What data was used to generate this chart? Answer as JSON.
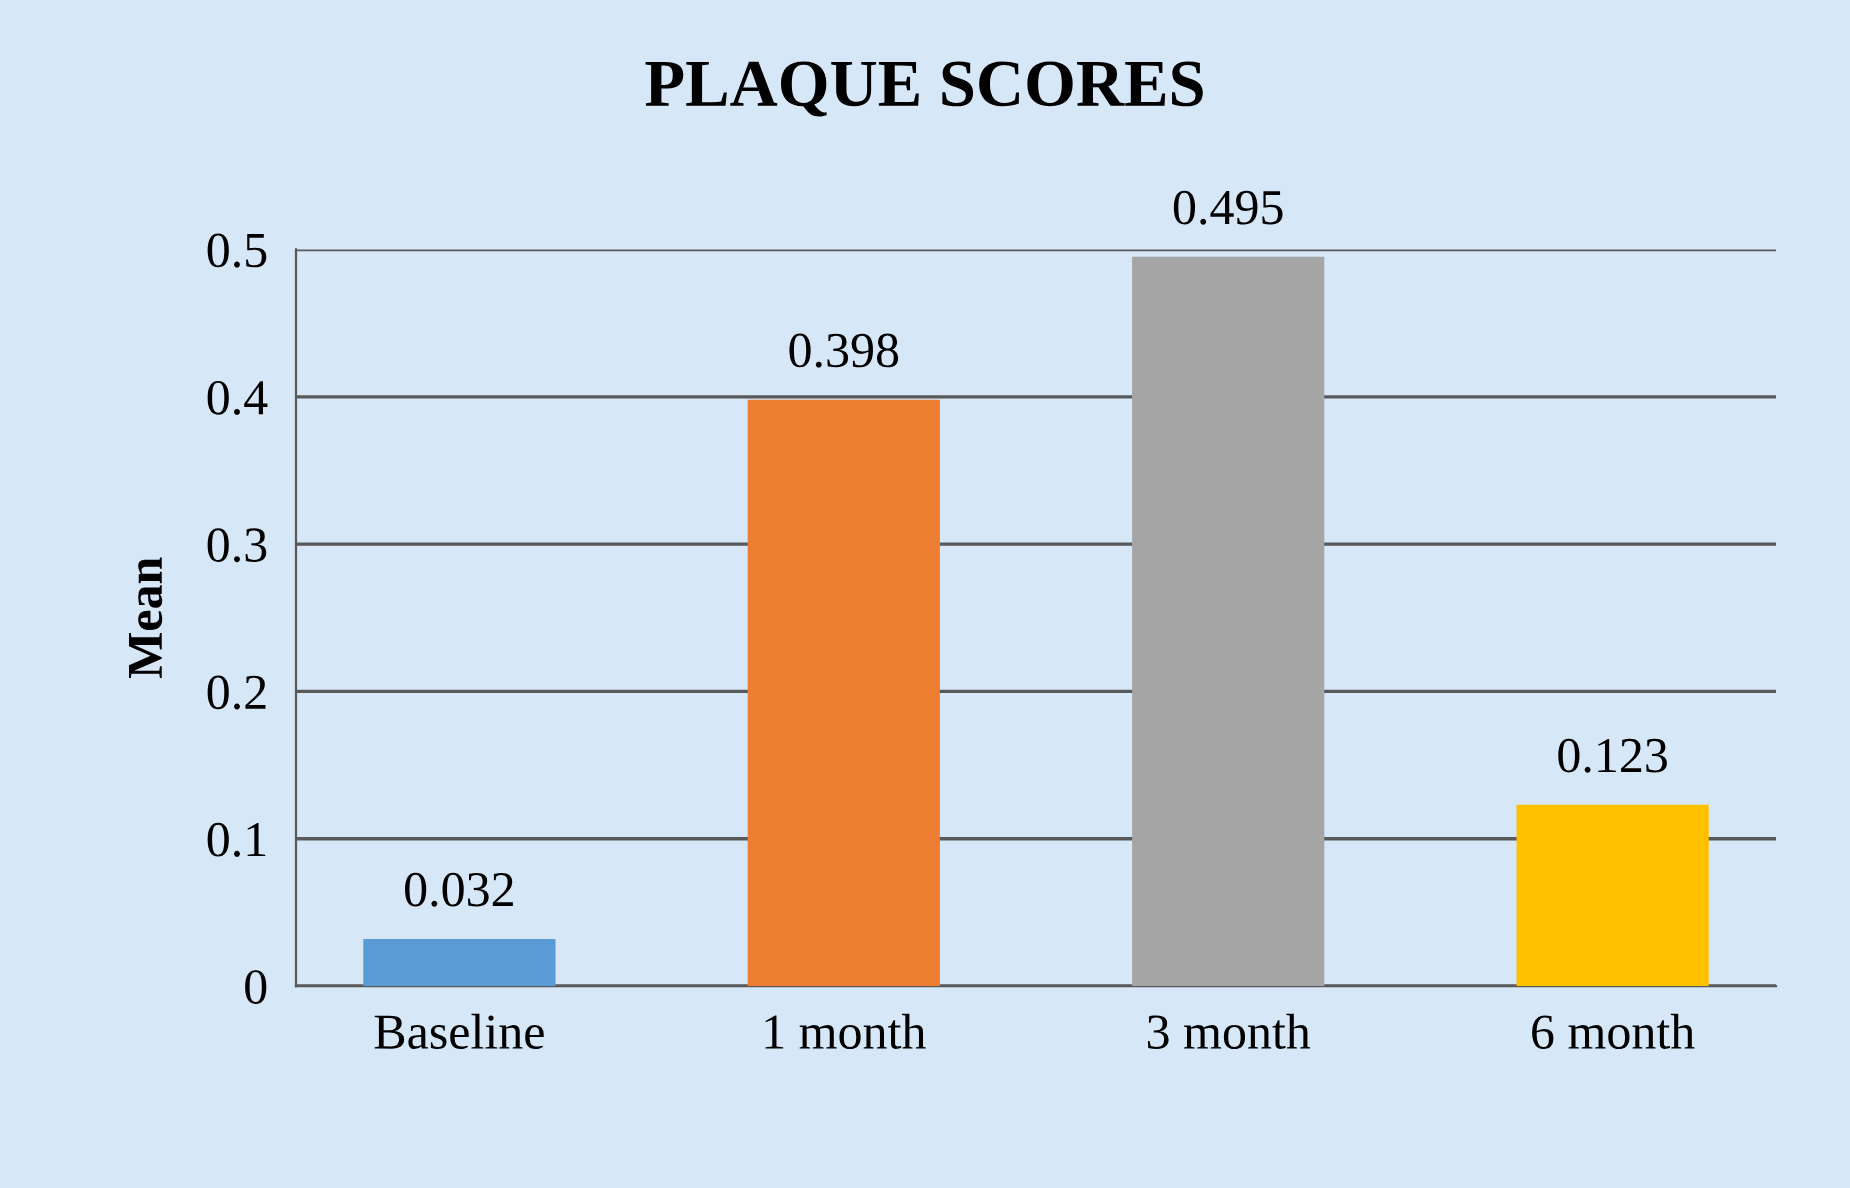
{
  "chart_data": {
    "type": "bar",
    "title": "PLAQUE SCORES",
    "ylabel": "Mean",
    "categories": [
      "Baseline",
      "1 month",
      "3 month",
      "6 month"
    ],
    "values": [
      0.032,
      0.398,
      0.495,
      0.123
    ],
    "colors": [
      "#5b9bd5",
      "#ed7d31",
      "#a5a5a5",
      "#ffc000"
    ],
    "ylim": [
      0,
      0.5
    ],
    "yticks": [
      0,
      0.1,
      0.2,
      0.3,
      0.4,
      0.5
    ],
    "grid": "y",
    "data_labels": true
  }
}
